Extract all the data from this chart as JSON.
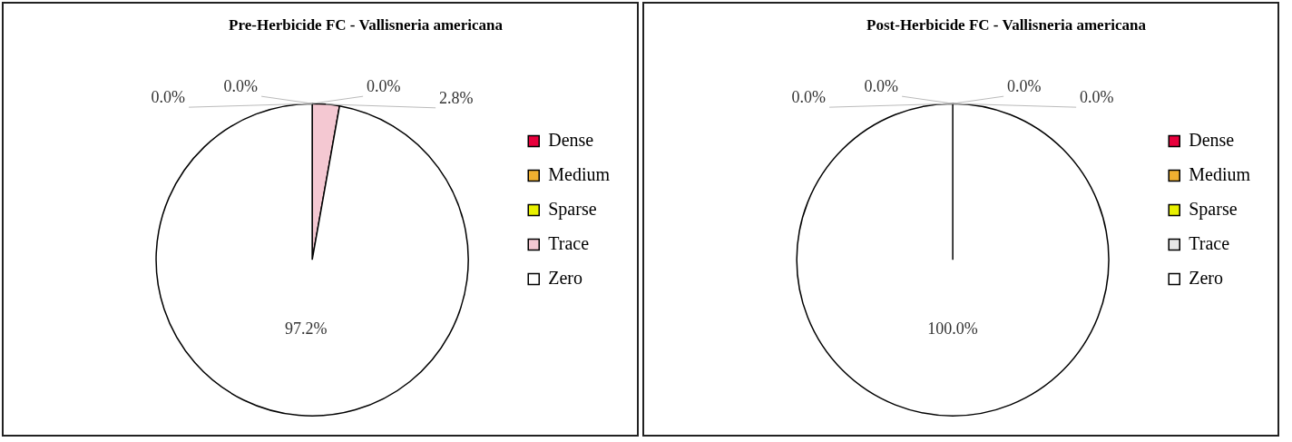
{
  "chart_data": [
    {
      "type": "pie",
      "title": "Pre-Herbicide FC - Vallisneria americana",
      "categories": [
        "Dense",
        "Medium",
        "Sparse",
        "Trace",
        "Zero"
      ],
      "values": [
        0.0,
        0.0,
        0.0,
        2.8,
        97.2
      ],
      "value_labels": [
        "0.0%",
        "0.0%",
        "0.0%",
        "2.8%",
        "97.2%"
      ],
      "colors": [
        "#e8003c",
        "#f0b030",
        "#e8f000",
        "#f4c8d2",
        "#ffffff"
      ],
      "legend": "right"
    },
    {
      "type": "pie",
      "title": "Post-Herbicide FC - Vallisneria americana",
      "categories": [
        "Dense",
        "Medium",
        "Sparse",
        "Trace",
        "Zero"
      ],
      "values": [
        0.0,
        0.0,
        0.0,
        0.0,
        100.0
      ],
      "value_labels": [
        "0.0%",
        "0.0%",
        "0.0%",
        "0.0%",
        "100.0%"
      ],
      "colors": [
        "#e8003c",
        "#f0b030",
        "#e8f000",
        "#e6e6e6",
        "#ffffff"
      ],
      "legend": "right"
    }
  ]
}
